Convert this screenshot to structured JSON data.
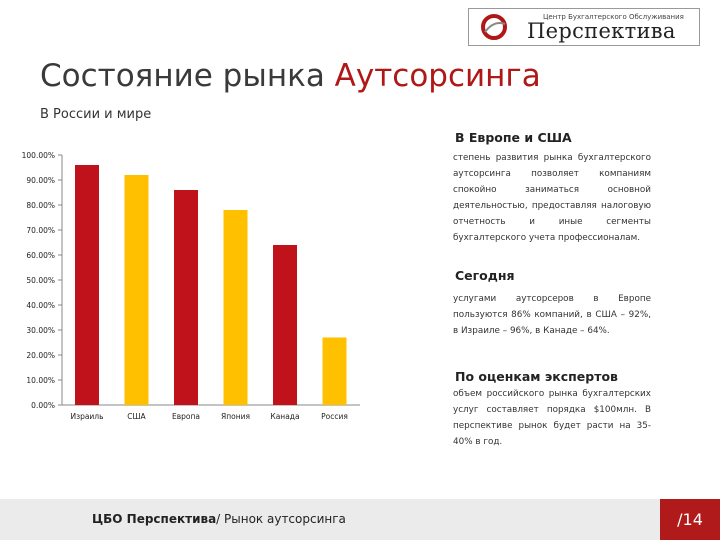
{
  "logo": {
    "tagline": "Центр Бухгалтерского Обслуживания",
    "name": "Перспектива"
  },
  "header": {
    "title_part1": "Состояние рынка",
    "title_part2": "Аутсорсинга",
    "subtitle": "В России и мире"
  },
  "sidebar": {
    "section1": {
      "heading": "В Европе и США",
      "text": "степень развития рынка бухгалтерского аутсорсинга позволяет компаниям спокойно заниматься основной деятельностью, предоставляя налоговую отчетность и иные сегменты бухгалтерского учета профессионалам."
    },
    "section2": {
      "heading": "Сегодня",
      "text": "услугами аутсорсеров в Европе пользуются 86% компаний, в США – 92%, в Израиле – 96%, в Канаде – 64%."
    },
    "section3": {
      "heading": "По оценкам экспертов",
      "text": "объем российского рынка бухгалтерских услуг составляет порядка $100млн. В перспективе рынок будет расти на 35-40% в год."
    }
  },
  "footer": {
    "text_bold": "ЦБО Перспектива",
    "text_rest": "/ Рынок аутсорсинга",
    "page": "/14"
  },
  "colors": {
    "red": "#c0121a",
    "yellow": "#ffc000",
    "accent": "#b01818"
  },
  "chart_data": {
    "type": "bar",
    "categories": [
      "Израиль",
      "США",
      "Европа",
      "Япония",
      "Канада",
      "Россия"
    ],
    "values": [
      96,
      92,
      86,
      78,
      64,
      27
    ],
    "colors": [
      "#c0121a",
      "#ffc000",
      "#c0121a",
      "#ffc000",
      "#c0121a",
      "#ffc000"
    ],
    "yticks": [
      "0.00%",
      "10.00%",
      "20.00%",
      "30.00%",
      "40.00%",
      "50.00%",
      "60.00%",
      "70.00%",
      "80.00%",
      "90.00%",
      "100.00%"
    ],
    "ylim": [
      0,
      100
    ],
    "grid": false,
    "legend": "none"
  }
}
